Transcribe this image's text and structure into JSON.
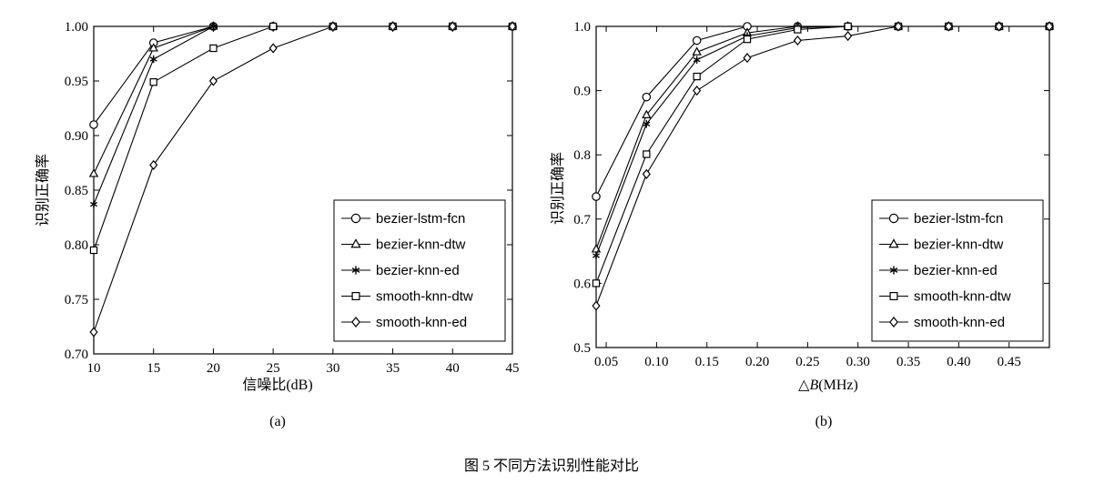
{
  "caption": "图 5   不同方法识别性能对比",
  "legend_labels": [
    "bezier-lstm-fcn",
    "bezier-knn-dtw",
    "bezier-knn-ed",
    "smooth-knn-dtw",
    "smooth-knn-ed"
  ],
  "chart_data": [
    {
      "panel": "(a)",
      "type": "line",
      "xlabel": "信噪比(dB)",
      "ylabel": "识别正确率",
      "xlim": [
        10,
        45
      ],
      "ylim": [
        0.7,
        1.0
      ],
      "xticks": [
        10,
        15,
        20,
        25,
        30,
        35,
        40,
        45
      ],
      "xtick_labels": [
        "10",
        "15",
        "20",
        "25",
        "30",
        "35",
        "40",
        "45"
      ],
      "yticks": [
        0.7,
        0.75,
        0.8,
        0.85,
        0.9,
        0.95,
        1.0
      ],
      "ytick_labels": [
        "0.70",
        "0.75",
        "0.80",
        "0.85",
        "0.90",
        "0.95",
        "1.00"
      ],
      "legend_position": "lower-right",
      "x": [
        10,
        15,
        20,
        25,
        30,
        35,
        40,
        45
      ],
      "series": [
        {
          "name": "bezier-lstm-fcn",
          "marker": "circle",
          "values": [
            0.91,
            0.985,
            1.0,
            1.0,
            1.0,
            1.0,
            1.0,
            1.0
          ]
        },
        {
          "name": "bezier-knn-dtw",
          "marker": "triangle",
          "values": [
            0.865,
            0.98,
            1.0,
            1.0,
            1.0,
            1.0,
            1.0,
            1.0
          ]
        },
        {
          "name": "bezier-knn-ed",
          "marker": "asterisk",
          "values": [
            0.837,
            0.97,
            1.0,
            1.0,
            1.0,
            1.0,
            1.0,
            1.0
          ]
        },
        {
          "name": "smooth-knn-dtw",
          "marker": "square",
          "values": [
            0.795,
            0.949,
            0.98,
            1.0,
            1.0,
            1.0,
            1.0,
            1.0
          ]
        },
        {
          "name": "smooth-knn-ed",
          "marker": "diamond",
          "values": [
            0.72,
            0.873,
            0.95,
            0.98,
            1.0,
            1.0,
            1.0,
            1.0
          ]
        }
      ]
    },
    {
      "panel": "(b)",
      "type": "line",
      "xlabel_prefix": "△",
      "xlabel_var": "B",
      "xlabel_suffix": "(MHz)",
      "ylabel": "识别正确率",
      "xlim": [
        0.04,
        0.49
      ],
      "ylim": [
        0.5,
        1.0
      ],
      "xticks": [
        0.05,
        0.1,
        0.15,
        0.2,
        0.25,
        0.3,
        0.35,
        0.4,
        0.45
      ],
      "xtick_labels": [
        "0.05",
        "0.10",
        "0.15",
        "0.20",
        "0.25",
        "0.30",
        "0.35",
        "0.40",
        "0.45"
      ],
      "yticks": [
        0.5,
        0.6,
        0.7,
        0.8,
        0.9,
        1.0
      ],
      "ytick_labels": [
        "0.5",
        "0.6",
        "0.7",
        "0.8",
        "0.9",
        "1.0"
      ],
      "legend_position": "lower-right",
      "x": [
        0.04,
        0.09,
        0.14,
        0.19,
        0.24,
        0.29,
        0.34,
        0.39,
        0.44,
        0.49
      ],
      "series": [
        {
          "name": "bezier-lstm-fcn",
          "marker": "circle",
          "values": [
            0.735,
            0.89,
            0.978,
            1.0,
            1.0,
            1.0,
            1.0,
            1.0,
            1.0,
            1.0
          ]
        },
        {
          "name": "bezier-knn-dtw",
          "marker": "triangle",
          "values": [
            0.653,
            0.862,
            0.96,
            0.99,
            1.0,
            1.0,
            1.0,
            1.0,
            1.0,
            1.0
          ]
        },
        {
          "name": "bezier-knn-ed",
          "marker": "asterisk",
          "values": [
            0.643,
            0.848,
            0.948,
            0.985,
            0.998,
            1.0,
            1.0,
            1.0,
            1.0,
            1.0
          ]
        },
        {
          "name": "smooth-knn-dtw",
          "marker": "square",
          "values": [
            0.6,
            0.801,
            0.922,
            0.98,
            0.995,
            1.0,
            1.0,
            1.0,
            1.0,
            1.0
          ]
        },
        {
          "name": "smooth-knn-ed",
          "marker": "diamond",
          "values": [
            0.565,
            0.77,
            0.9,
            0.951,
            0.978,
            0.985,
            1.0,
            1.0,
            1.0,
            1.0
          ]
        }
      ]
    }
  ]
}
